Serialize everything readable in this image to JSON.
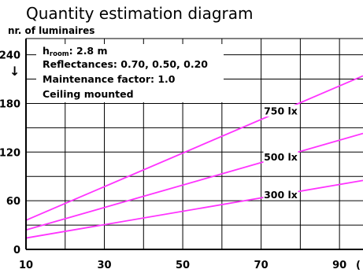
{
  "title": "Quantity estimation diagram",
  "chart_data": {
    "type": "line",
    "title": "Quantity estimation diagram",
    "ylabel": "nr. of luminaires",
    "xlabel": "",
    "xlim": [
      10,
      96
    ],
    "ylim": [
      0,
      260
    ],
    "x_ticks": [
      10,
      30,
      50,
      70,
      90
    ],
    "y_ticks": [
      0,
      60,
      120,
      180,
      240
    ],
    "x_axis_cut_label": "(",
    "grid": true,
    "series": [
      {
        "name": "750 lx",
        "x": [
          10,
          96
        ],
        "y": [
          36,
          214
        ]
      },
      {
        "name": "500 lx",
        "x": [
          10,
          96
        ],
        "y": [
          24,
          143
        ]
      },
      {
        "name": "300 lx",
        "x": [
          10,
          96
        ],
        "y": [
          14,
          85
        ]
      }
    ],
    "series_label_at_x": 75,
    "line_color": "#ff33ff"
  },
  "info_box": {
    "h_room_prefix": "h",
    "h_room_sub": "room",
    "h_room_value": ": 2.8 m",
    "reflectances": "Reflectances:  0.70, 0.50, 0.20",
    "maintenance": "Maintenance factor:  1.0",
    "mounting": "Ceiling mounted"
  },
  "y_arrow": "↓"
}
